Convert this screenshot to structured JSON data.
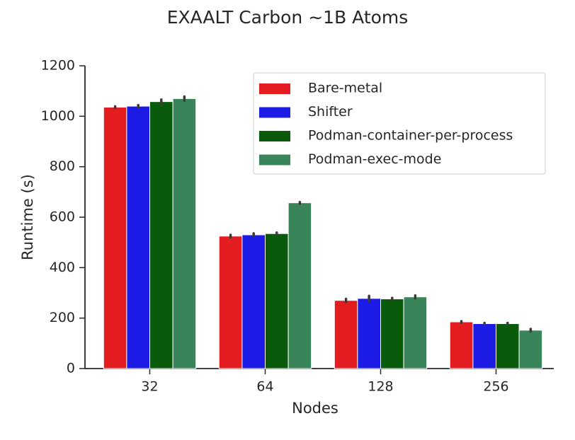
{
  "chart_data": {
    "type": "bar",
    "title": "EXAALT Carbon ~1B Atoms",
    "x_label": "Nodes",
    "y_label": "Runtime (s)",
    "categories": [
      "32",
      "64",
      "128",
      "256"
    ],
    "series": [
      {
        "name": "Bare-metal",
        "color": "#e31c1f",
        "values": [
          1036,
          525,
          270,
          185
        ],
        "errors": [
          3,
          5,
          6,
          3
        ]
      },
      {
        "name": "Shifter",
        "color": "#1c1ce6",
        "values": [
          1040,
          530,
          278,
          178
        ],
        "errors": [
          4,
          6,
          10,
          3
        ]
      },
      {
        "name": "Podman-container-per-process",
        "color": "#0a5a0c",
        "values": [
          1058,
          535,
          276,
          178
        ],
        "errors": [
          8,
          4,
          4,
          3
        ]
      },
      {
        "name": "Podman-exec-mode",
        "color": "#398458",
        "values": [
          1070,
          657,
          284,
          152
        ],
        "errors": [
          8,
          3,
          6,
          5
        ]
      }
    ],
    "ylim": [
      0,
      1200
    ],
    "yticks": [
      0,
      200,
      400,
      600,
      800,
      1000,
      1200
    ],
    "legend": "upper right"
  }
}
